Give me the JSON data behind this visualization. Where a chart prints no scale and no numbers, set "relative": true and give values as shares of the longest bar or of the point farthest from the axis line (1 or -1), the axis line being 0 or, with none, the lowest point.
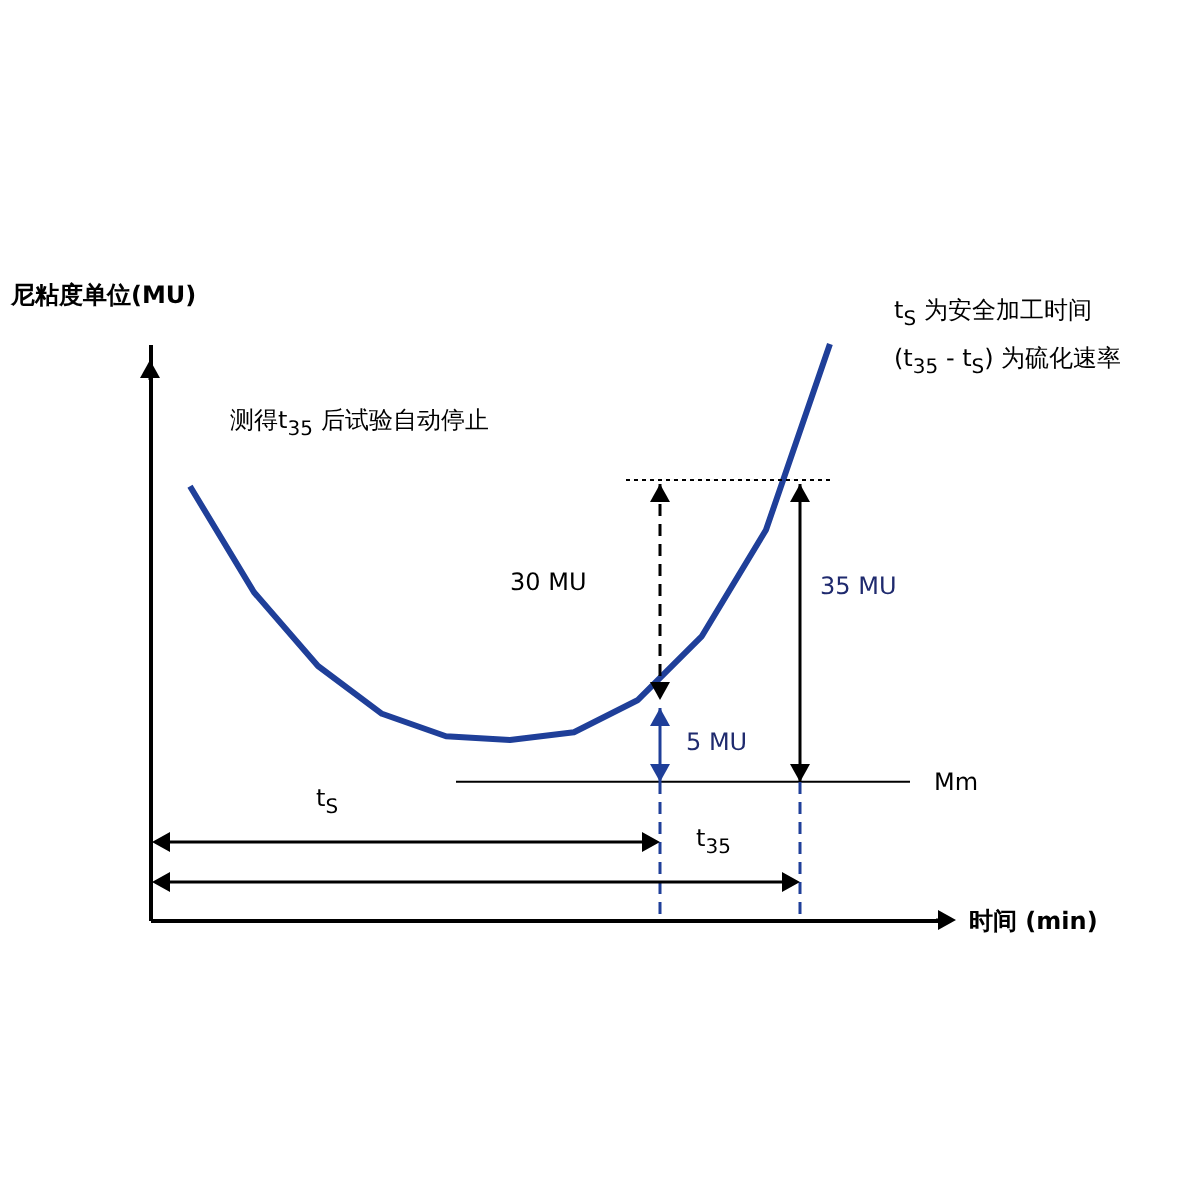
{
  "chart_data": {
    "type": "line",
    "relative": true,
    "ylabel": "尼粘度单位(MU)",
    "xlabel": "时间 (min)",
    "categories": [
      null,
      null,
      null,
      null,
      null,
      null,
      null,
      null,
      null,
      null,
      null
    ],
    "series": [
      {
        "color": "#1f3f99",
        "values": [
          0.753,
          0.569,
          0.441,
          0.358,
          0.319,
          0.3125,
          0.326,
          0.382,
          0.493,
          0.677,
          1.0
        ]
      }
    ],
    "ref_lines": [
      {
        "axis": "y",
        "value": 0.24,
        "label": "Mm",
        "color": "#000000",
        "line_style": "solid"
      },
      {
        "axis": "y",
        "value": 0.764,
        "color": "#000000",
        "line_style": "dotted"
      }
    ],
    "annotations": [
      "t$_{S}$ 为安全加工时间",
      "(t$_{35}$ - t$_{S}$) 为硫化速率",
      "测得t$_{35}$ 后试验自动停止",
      "30 MU",
      "5 MU",
      "35 MU",
      "t$_{S}$",
      "t$_{35}$"
    ]
  }
}
